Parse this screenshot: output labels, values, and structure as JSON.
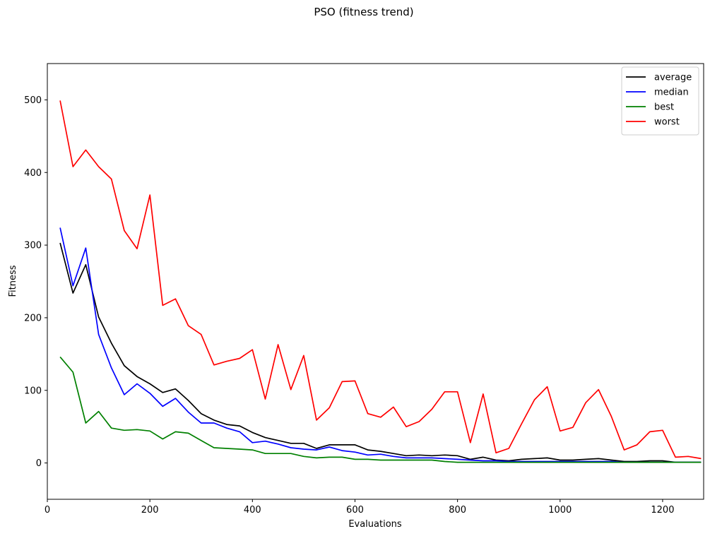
{
  "chart_data": {
    "type": "line",
    "title": "PSO (fitness trend)",
    "xlabel": "Evaluations",
    "ylabel": "Fitness",
    "xlim": [
      0,
      1280
    ],
    "ylim": [
      -50,
      550
    ],
    "xticks": [
      0,
      200,
      400,
      600,
      800,
      1000,
      1200
    ],
    "yticks": [
      0,
      100,
      200,
      300,
      400,
      500
    ],
    "grid": false,
    "legend_position": "top-right",
    "x": [
      25,
      50,
      75,
      100,
      125,
      150,
      175,
      200,
      225,
      250,
      275,
      300,
      325,
      350,
      375,
      400,
      425,
      450,
      475,
      500,
      525,
      550,
      575,
      600,
      625,
      650,
      675,
      700,
      725,
      750,
      775,
      800,
      825,
      850,
      875,
      900,
      925,
      950,
      975,
      1000,
      1025,
      1050,
      1075,
      1100,
      1125,
      1150,
      1175,
      1200,
      1225,
      1250,
      1275
    ],
    "series": [
      {
        "name": "average",
        "color": "#000000",
        "values": [
          303,
          234,
          273,
          201,
          165,
          134,
          119,
          109,
          97,
          102,
          86,
          68,
          59,
          53,
          51,
          42,
          35,
          31,
          27,
          27,
          20,
          25,
          25,
          25,
          18,
          16,
          13,
          10,
          11,
          10,
          11,
          10,
          5,
          8,
          4,
          3,
          5,
          6,
          7,
          4,
          4,
          5,
          6,
          4,
          2,
          2,
          3,
          3,
          1,
          1,
          1
        ]
      },
      {
        "name": "median",
        "color": "#0000ff",
        "values": [
          324,
          244,
          296,
          177,
          131,
          94,
          109,
          96,
          78,
          89,
          70,
          55,
          55,
          48,
          43,
          28,
          30,
          26,
          21,
          19,
          18,
          22,
          17,
          15,
          11,
          12,
          9,
          7,
          7,
          7,
          6,
          5,
          4,
          3,
          3,
          2,
          2,
          2,
          2,
          2,
          2,
          2,
          2,
          2,
          1,
          1,
          1,
          1,
          1,
          1,
          1
        ]
      },
      {
        "name": "best",
        "color": "#008000",
        "values": [
          146,
          125,
          55,
          71,
          48,
          45,
          46,
          44,
          33,
          43,
          41,
          31,
          21,
          20,
          19,
          18,
          13,
          13,
          13,
          9,
          7,
          8,
          8,
          5,
          5,
          4,
          4,
          4,
          4,
          4,
          2,
          1,
          1,
          1,
          1,
          1,
          1,
          1,
          1,
          1,
          1,
          1,
          1,
          1,
          1,
          1,
          1,
          1,
          1,
          1,
          1
        ]
      },
      {
        "name": "worst",
        "color": "#ff0000",
        "values": [
          499,
          408,
          431,
          408,
          391,
          320,
          295,
          369,
          217,
          226,
          189,
          177,
          135,
          140,
          144,
          156,
          88,
          163,
          101,
          148,
          59,
          76,
          112,
          113,
          68,
          63,
          77,
          50,
          57,
          74,
          98,
          98,
          28,
          95,
          14,
          20,
          54,
          87,
          105,
          44,
          49,
          83,
          101,
          64,
          18,
          25,
          43,
          45,
          8,
          9,
          6
        ]
      }
    ]
  }
}
